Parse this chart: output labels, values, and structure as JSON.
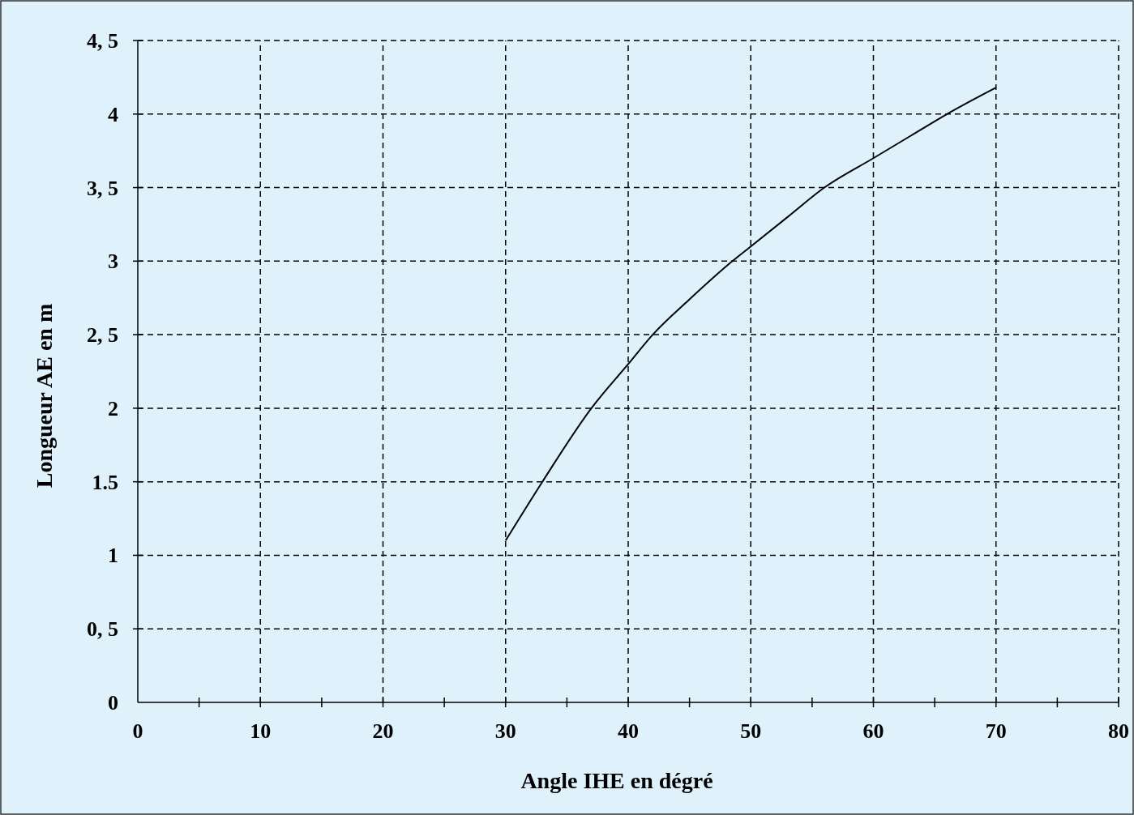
{
  "chart_data": {
    "type": "line",
    "xlabel": "Angle IHE en dégré",
    "ylabel": "Longueur AE en m",
    "series": [
      {
        "color": "#000000",
        "x": [
          30,
          33,
          37,
          40,
          42,
          45,
          48.5,
          50,
          53,
          56,
          60,
          63,
          66,
          70
        ],
        "values": [
          1.1,
          1.5,
          2.0,
          2.3,
          2.5,
          2.74,
          3.0,
          3.1,
          3.3,
          3.5,
          3.7,
          3.85,
          4.0,
          4.18
        ]
      }
    ],
    "xlim": [
      0,
      80
    ],
    "ylim": [
      0,
      4.5
    ],
    "xticks": [
      0,
      {
        "value": 5,
        "label": null
      },
      10,
      {
        "value": 15,
        "label": null
      },
      20,
      {
        "value": 25,
        "label": null
      },
      30,
      {
        "value": 35,
        "label": null
      },
      40,
      {
        "value": 45,
        "label": null
      },
      50,
      {
        "value": 55,
        "label": null
      },
      60,
      {
        "value": 65,
        "label": null
      },
      70,
      {
        "value": 75,
        "label": null
      },
      80
    ],
    "yticks": [
      0,
      {
        "value": 0.5,
        "label": "0, 5"
      },
      1,
      1.5,
      2,
      {
        "value": 2.5,
        "label": "2, 5"
      },
      3,
      {
        "value": 3.5,
        "label": "3, 5"
      },
      4,
      {
        "value": 4.5,
        "label": "4, 5"
      }
    ],
    "grid": true,
    "line_style": "solid",
    "marker": "none"
  }
}
